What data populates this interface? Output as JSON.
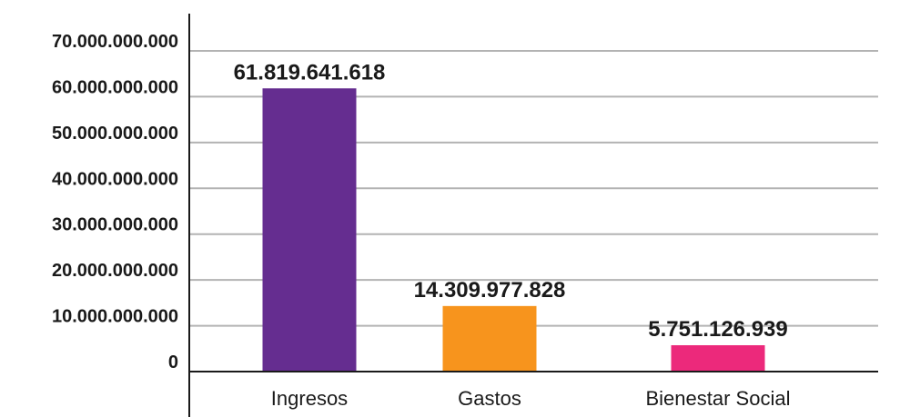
{
  "chart_data": {
    "type": "bar",
    "title": "",
    "xlabel": "",
    "ylabel": "",
    "categories": [
      "Ingresos",
      "Gastos",
      "Bienestar Social"
    ],
    "values": [
      61819641618,
      14309977828,
      5751126939
    ],
    "value_labels": [
      "61.819.641.618",
      "14.309.977.828",
      "5.751.126.939"
    ],
    "colors": [
      "#652d90",
      "#f7941d",
      "#ec297b"
    ],
    "ylim": [
      0,
      70000000000
    ],
    "yticks": [
      0,
      10000000000,
      20000000000,
      30000000000,
      40000000000,
      50000000000,
      60000000000,
      70000000000
    ],
    "ytick_labels": [
      "0",
      "10.000.000.000",
      "20.000.000.000",
      "30.000.000.000",
      "40.000.000.000",
      "50.000.000.000",
      "60.000.000.000",
      "70.000.000.000"
    ],
    "grid": true,
    "legend": "none",
    "grid_color": "#b3b3b3",
    "axis_color": "#1a1a1a"
  }
}
